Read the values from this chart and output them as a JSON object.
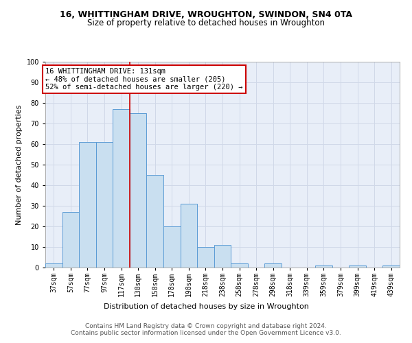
{
  "title1": "16, WHITTINGHAM DRIVE, WROUGHTON, SWINDON, SN4 0TA",
  "title2": "Size of property relative to detached houses in Wroughton",
  "xlabel": "Distribution of detached houses by size in Wroughton",
  "ylabel": "Number of detached properties",
  "bar_labels": [
    "37sqm",
    "57sqm",
    "77sqm",
    "97sqm",
    "117sqm",
    "138sqm",
    "158sqm",
    "178sqm",
    "198sqm",
    "218sqm",
    "238sqm",
    "258sqm",
    "278sqm",
    "298sqm",
    "318sqm",
    "339sqm",
    "359sqm",
    "379sqm",
    "399sqm",
    "419sqm",
    "439sqm"
  ],
  "bar_values": [
    2,
    27,
    61,
    61,
    77,
    75,
    45,
    20,
    31,
    10,
    11,
    2,
    0,
    2,
    0,
    0,
    1,
    0,
    1,
    0,
    1
  ],
  "bar_color": "#c9dff0",
  "bar_edge_color": "#5b9bd5",
  "vline_x": 4.5,
  "vline_color": "#cc0000",
  "annotation_text": "16 WHITTINGHAM DRIVE: 131sqm\n← 48% of detached houses are smaller (205)\n52% of semi-detached houses are larger (220) →",
  "annotation_box_color": "#ffffff",
  "annotation_box_edge": "#cc0000",
  "ylim": [
    0,
    100
  ],
  "yticks": [
    0,
    10,
    20,
    30,
    40,
    50,
    60,
    70,
    80,
    90,
    100
  ],
  "grid_color": "#d0d8e8",
  "background_color": "#e8eef8",
  "footer": "Contains HM Land Registry data © Crown copyright and database right 2024.\nContains public sector information licensed under the Open Government Licence v3.0.",
  "title1_fontsize": 9,
  "title2_fontsize": 8.5,
  "xlabel_fontsize": 8,
  "ylabel_fontsize": 8,
  "tick_fontsize": 7,
  "annotation_fontsize": 7.5,
  "footer_fontsize": 6.5
}
